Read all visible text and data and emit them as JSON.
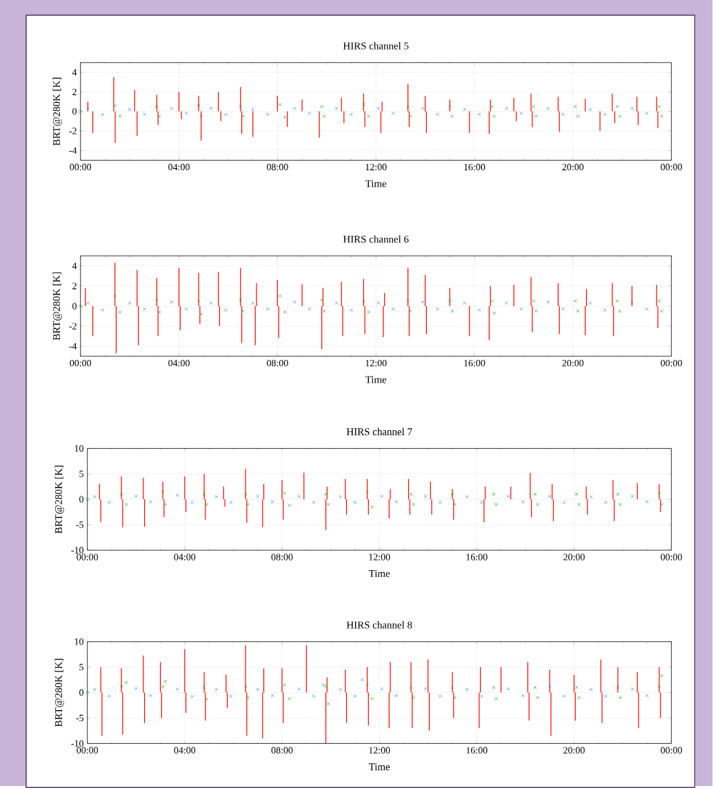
{
  "chart_data": [
    {
      "type": "scatter",
      "title": "HIRS channel 5",
      "xlabel": "Time",
      "ylabel": "BRT@280K [K]",
      "xlim": [
        0,
        24
      ],
      "xticks": [
        {
          "value": 0,
          "label": "00:00"
        },
        {
          "value": 4,
          "label": "04:00"
        },
        {
          "value": 8,
          "label": "08:00"
        },
        {
          "value": 12,
          "label": "12:00"
        },
        {
          "value": 16,
          "label": "16:00"
        },
        {
          "value": 20,
          "label": "20:00"
        },
        {
          "value": 24,
          "label": "00:00"
        }
      ],
      "ylim": [
        -5,
        5
      ],
      "yticks": [
        -4,
        -2,
        0,
        2,
        4
      ],
      "grid": true,
      "series": [
        {
          "type": "bar",
          "color": "#ff0000",
          "x": [
            0,
            0.3,
            0.5,
            1.35,
            1.41,
            2.2,
            2.3,
            3.1,
            3.15,
            4.0,
            4.1,
            4.8,
            4.9,
            5.6,
            5.7,
            6.5,
            6.55,
            7.0,
            8.0,
            8.4,
            9.0,
            9.7,
            10.6,
            10.7,
            11.5,
            11.55,
            12.2,
            12.25,
            13.3,
            13.35,
            14.0,
            14.05,
            15.0,
            15.8,
            16.6,
            16.65,
            17.6,
            17.7,
            18.3,
            18.35,
            19.4,
            19.45,
            20.5,
            21.1,
            21.6,
            21.7,
            22.6,
            22.65,
            23.4,
            23.45,
            24
          ],
          "values": [
            0,
            1.0,
            -2.2,
            3.5,
            -3.2,
            2.2,
            -2.5,
            1.7,
            -1.4,
            2.0,
            -0.8,
            1.6,
            -3.0,
            2.0,
            -1.0,
            2.5,
            -2.3,
            -2.6,
            1.6,
            -1.6,
            1.2,
            -2.7,
            1.4,
            -1.2,
            1.8,
            -1.6,
            -2.2,
            1.0,
            2.8,
            -1.6,
            1.6,
            -2.2,
            1.2,
            -2.2,
            -2.3,
            1.2,
            1.4,
            -1.0,
            1.8,
            -1.6,
            1.5,
            -2.1,
            1.3,
            -2.0,
            1.8,
            -1.2,
            1.5,
            -1.4,
            1.5,
            -1.7,
            0
          ]
        },
        {
          "marker": "cross",
          "color": "#1e8cff",
          "x": [
            0.3,
            0.9,
            2.0,
            2.6,
            3.7,
            4.3,
            5.3,
            5.9,
            7.0,
            7.6,
            8.7,
            9.3,
            10.4,
            11.0,
            12.1,
            12.7,
            13.9,
            14.5,
            15.6,
            16.2,
            17.3,
            17.9,
            19.0,
            19.6,
            20.7,
            21.3,
            22.4,
            23.0
          ],
          "values": [
            0.3,
            -0.3,
            0.2,
            -0.3,
            0.3,
            -0.2,
            0.3,
            -0.3,
            0.2,
            -0.3,
            0.3,
            -0.2,
            0.3,
            -0.3,
            0.3,
            -0.2,
            0.3,
            -0.3,
            0.2,
            -0.3,
            0.3,
            -0.2,
            0.3,
            -0.3,
            0.2,
            -0.3,
            0.3,
            -0.2
          ]
        },
        {
          "marker": "cross",
          "color": "#00b400",
          "x": [
            0,
            1.4,
            1.6,
            3.1,
            3.2,
            4.8,
            4.9,
            6.5,
            6.6,
            8.1,
            8.3,
            9.8,
            9.9,
            11.5,
            11.7,
            13.3,
            13.4,
            15.0,
            15.1,
            16.7,
            16.8,
            18.4,
            18.5,
            20.1,
            20.2,
            21.8,
            21.9,
            23.5,
            23.6
          ],
          "values": [
            0,
            0.6,
            -0.5,
            0.5,
            -0.5,
            0.6,
            -0.5,
            0.5,
            -0.5,
            0.7,
            -0.6,
            0.5,
            -0.5,
            0.7,
            -0.5,
            0.5,
            -0.5,
            0.5,
            -0.5,
            0.5,
            -0.5,
            0.5,
            -0.5,
            0.5,
            -0.5,
            0.5,
            -0.5,
            0.5,
            -0.5
          ]
        }
      ]
    },
    {
      "type": "scatter",
      "title": "HIRS channel 6",
      "xlabel": "Time",
      "ylabel": "BRT@280K [K]",
      "xlim": [
        0,
        24
      ],
      "xticks": [
        {
          "value": 0,
          "label": "00:00"
        },
        {
          "value": 4,
          "label": "04:00"
        },
        {
          "value": 8,
          "label": "08:00"
        },
        {
          "value": 12,
          "label": "12:00"
        },
        {
          "value": 16,
          "label": "16:00"
        },
        {
          "value": 20,
          "label": "20:00"
        },
        {
          "value": 24,
          "label": "00:00"
        }
      ],
      "ylim": [
        -5,
        5
      ],
      "yticks": [
        -4,
        -2,
        0,
        2,
        4
      ],
      "grid": true,
      "series": [
        {
          "type": "bar",
          "color": "#ff0000",
          "x": [
            0,
            0.2,
            0.5,
            1.4,
            1.45,
            2.3,
            2.35,
            3.1,
            3.15,
            4.0,
            4.05,
            4.8,
            4.85,
            5.6,
            5.65,
            6.5,
            6.55,
            7.1,
            7.15,
            8.0,
            8.05,
            9.0,
            9.8,
            9.85,
            10.6,
            10.65,
            11.5,
            11.55,
            12.3,
            12.35,
            13.3,
            13.35,
            14.0,
            14.05,
            15.0,
            15.8,
            16.6,
            16.65,
            17.6,
            18.3,
            18.35,
            19.4,
            19.45,
            20.5,
            20.55,
            21.6,
            21.65,
            22.4,
            23.4,
            23.45,
            24
          ],
          "values": [
            0,
            1.8,
            -3.0,
            4.3,
            -4.7,
            3.6,
            -3.9,
            2.8,
            -3.0,
            3.8,
            -2.4,
            3.3,
            -1.8,
            3.4,
            -2.0,
            3.8,
            -3.7,
            -3.9,
            2.3,
            2.6,
            -3.2,
            2.2,
            -4.3,
            1.8,
            2.4,
            -3.0,
            2.7,
            -2.8,
            -3.1,
            1.3,
            3.8,
            -3.0,
            3.1,
            -2.8,
            1.8,
            -3.0,
            -3.4,
            2.0,
            2.1,
            2.9,
            -2.6,
            2.3,
            -2.8,
            -2.9,
            1.7,
            2.3,
            -3.0,
            2.0,
            2.1,
            -2.2,
            0
          ]
        },
        {
          "marker": "cross",
          "color": "#1e8cff",
          "x": [
            0.3,
            0.9,
            2.0,
            2.6,
            3.7,
            4.3,
            5.3,
            5.9,
            7.0,
            7.6,
            8.7,
            9.3,
            10.4,
            11.0,
            12.1,
            12.7,
            13.9,
            14.5,
            15.6,
            16.2,
            17.3,
            17.9,
            19.0,
            19.6,
            20.7,
            21.3,
            22.4,
            23.0
          ],
          "values": [
            0.3,
            -0.4,
            0.3,
            -0.3,
            0.4,
            -0.3,
            0.3,
            -0.4,
            0.3,
            -0.3,
            0.4,
            -0.3,
            0.3,
            -0.4,
            0.3,
            -0.3,
            0.4,
            -0.3,
            0.3,
            -0.4,
            0.3,
            -0.3,
            0.4,
            -0.3,
            0.3,
            -0.4,
            0.3,
            -0.3
          ]
        },
        {
          "marker": "cross",
          "color": "#00b400",
          "x": [
            0,
            1.4,
            1.6,
            3.1,
            3.2,
            4.8,
            4.9,
            6.5,
            6.6,
            8.1,
            8.3,
            9.8,
            9.9,
            11.5,
            11.7,
            13.3,
            13.4,
            15.0,
            15.1,
            16.7,
            16.8,
            18.4,
            18.5,
            20.1,
            20.2,
            21.8,
            21.9,
            23.5,
            23.6
          ],
          "values": [
            0,
            1.0,
            -0.6,
            0.6,
            -0.6,
            0.5,
            -0.8,
            0.6,
            -0.5,
            1.0,
            -0.6,
            0.6,
            -0.5,
            0.5,
            -0.6,
            0.5,
            -0.5,
            0.5,
            -0.5,
            0.5,
            -0.7,
            0.5,
            -0.5,
            0.5,
            -0.5,
            0.5,
            -0.5,
            0.5,
            -0.5
          ]
        }
      ]
    },
    {
      "type": "scatter",
      "title": "HIRS channel 7",
      "xlabel": "Time",
      "ylabel": "BRT@280K [K]",
      "xlim": [
        0,
        24
      ],
      "xticks": [
        {
          "value": 0,
          "label": "00:00"
        },
        {
          "value": 4,
          "label": "04:00"
        },
        {
          "value": 8,
          "label": "08:00"
        },
        {
          "value": 12,
          "label": "12:00"
        },
        {
          "value": 16,
          "label": "16:00"
        },
        {
          "value": 20,
          "label": "20:00"
        },
        {
          "value": 24,
          "label": "00:00"
        }
      ],
      "ylim": [
        -10,
        10
      ],
      "yticks": [
        -10,
        -5,
        0,
        5,
        10
      ],
      "grid": true,
      "series": [
        {
          "type": "bar",
          "color": "#ff0000",
          "x": [
            0,
            0.5,
            0.55,
            1.4,
            1.45,
            2.3,
            2.35,
            3.1,
            3.15,
            4.0,
            4.05,
            4.8,
            4.85,
            5.6,
            5.65,
            6.5,
            6.55,
            7.2,
            7.25,
            8.0,
            8.05,
            8.9,
            9.8,
            9.85,
            10.6,
            10.65,
            11.5,
            11.55,
            12.4,
            12.45,
            13.2,
            13.25,
            14.1,
            14.15,
            15.0,
            15.05,
            16.3,
            16.35,
            17.4,
            18.2,
            18.25,
            19.1,
            19.15,
            20.5,
            20.55,
            21.6,
            21.65,
            22.6,
            23.5,
            23.55,
            24
          ],
          "values": [
            0,
            3.0,
            -4.5,
            4.5,
            -5.5,
            4.2,
            -5.4,
            3.5,
            -3.5,
            4.5,
            -2.5,
            5.0,
            -4.0,
            2.5,
            -1.5,
            6.0,
            -4.6,
            -5.5,
            3.0,
            3.8,
            -4.0,
            5.2,
            -6.0,
            2.5,
            4.0,
            -3.0,
            4.0,
            -3.0,
            -3.8,
            2.0,
            4.0,
            -3.0,
            3.5,
            -3.0,
            2.0,
            -4.0,
            -4.5,
            2.5,
            2.5,
            5.2,
            -3.5,
            3.0,
            -4.3,
            2.5,
            -3.0,
            3.8,
            -4.3,
            3.2,
            3.0,
            -2.5,
            0
          ]
        },
        {
          "marker": "cross",
          "color": "#1e8cff",
          "x": [
            0.3,
            0.9,
            2.0,
            2.6,
            3.7,
            4.3,
            5.3,
            5.9,
            7.0,
            7.6,
            8.7,
            9.3,
            10.4,
            11.0,
            12.1,
            12.7,
            13.9,
            14.5,
            15.6,
            16.2,
            17.3,
            17.9,
            19.0,
            19.6,
            20.7,
            21.3,
            22.4,
            23.0
          ],
          "values": [
            0.5,
            -0.6,
            0.6,
            -0.5,
            0.8,
            -0.6,
            0.5,
            -0.6,
            0.6,
            -0.5,
            0.6,
            -0.6,
            0.5,
            -0.6,
            0.6,
            -0.5,
            0.6,
            -0.6,
            0.5,
            -0.6,
            0.6,
            -0.5,
            0.6,
            -0.6,
            0.5,
            -0.6,
            0.6,
            -0.5
          ]
        },
        {
          "marker": "cross",
          "color": "#00b400",
          "x": [
            0,
            1.4,
            1.6,
            3.1,
            3.2,
            4.8,
            4.9,
            6.5,
            6.6,
            8.1,
            8.3,
            9.8,
            9.9,
            11.5,
            11.7,
            13.3,
            13.4,
            15.0,
            15.1,
            16.7,
            16.8,
            18.4,
            18.5,
            20.1,
            20.2,
            21.8,
            21.9,
            23.5,
            23.6
          ],
          "values": [
            0,
            1.0,
            -1.0,
            1.5,
            -1.0,
            1.0,
            -1.0,
            1.0,
            -1.0,
            1.2,
            -1.2,
            1.0,
            -1.0,
            1.5,
            -1.5,
            1.0,
            -1.0,
            1.0,
            -1.0,
            1.0,
            -1.0,
            1.0,
            -1.0,
            1.0,
            -1.0,
            1.0,
            -1.0,
            1.2,
            -1.0
          ]
        }
      ]
    },
    {
      "type": "scatter",
      "title": "HIRS channel 8",
      "xlabel": "Time",
      "ylabel": "BRT@280K [K]",
      "xlim": [
        0,
        24
      ],
      "xticks": [
        {
          "value": 0,
          "label": "00:00"
        },
        {
          "value": 4,
          "label": "04:00"
        },
        {
          "value": 8,
          "label": "08:00"
        },
        {
          "value": 12,
          "label": "12:00"
        },
        {
          "value": 16,
          "label": "16:00"
        },
        {
          "value": 20,
          "label": "20:00"
        },
        {
          "value": 24,
          "label": "00:00"
        }
      ],
      "ylim": [
        -10,
        10
      ],
      "yticks": [
        -10,
        -5,
        0,
        5,
        10
      ],
      "grid": true,
      "series": [
        {
          "type": "bar",
          "color": "#ff0000",
          "x": [
            0,
            0.55,
            0.6,
            1.4,
            1.45,
            2.3,
            2.35,
            3.0,
            3.05,
            4.0,
            4.05,
            4.8,
            4.85,
            5.7,
            5.75,
            6.5,
            6.55,
            7.2,
            7.25,
            8.0,
            8.05,
            9.0,
            9.8,
            9.85,
            10.6,
            10.65,
            11.5,
            11.55,
            12.4,
            12.45,
            13.3,
            13.35,
            14.0,
            14.05,
            15.0,
            15.05,
            16.1,
            16.15,
            17.0,
            18.1,
            18.15,
            19.0,
            19.05,
            20.0,
            20.05,
            21.1,
            21.15,
            21.8,
            22.6,
            22.65,
            23.5,
            23.55,
            24
          ],
          "values": [
            0,
            5.0,
            -8.5,
            4.8,
            -8.3,
            7.3,
            -6.0,
            6.0,
            -5.0,
            8.5,
            -4.0,
            4.0,
            -5.5,
            3.5,
            -3.0,
            9.3,
            -8.5,
            -9.0,
            4.8,
            4.8,
            -6.0,
            9.3,
            -10.0,
            3.0,
            4.5,
            -6.0,
            5.0,
            -6.5,
            -7.0,
            6.0,
            6.0,
            -7.0,
            6.5,
            -7.5,
            4.0,
            -5.0,
            -7.0,
            5.0,
            5.0,
            6.0,
            -5.5,
            4.5,
            -8.5,
            3.5,
            -5.5,
            6.5,
            -6.0,
            5.0,
            4.0,
            -7.0,
            5.0,
            -5.0,
            0
          ]
        },
        {
          "marker": "cross",
          "color": "#1e8cff",
          "x": [
            0.3,
            0.9,
            2.0,
            2.6,
            3.7,
            4.3,
            5.3,
            5.9,
            7.0,
            7.6,
            8.7,
            9.3,
            9.7,
            10.4,
            11.0,
            11.3,
            12.1,
            12.7,
            13.9,
            14.5,
            15.6,
            16.2,
            17.3,
            17.9,
            19.0,
            19.6,
            20.7,
            21.3,
            22.4,
            23.0
          ],
          "values": [
            0.6,
            -0.7,
            0.8,
            -0.6,
            0.7,
            -0.8,
            0.6,
            -0.7,
            0.6,
            -0.6,
            0.7,
            -0.7,
            1.5,
            0.6,
            -0.7,
            2.5,
            0.7,
            -0.6,
            0.8,
            -0.7,
            0.6,
            -0.7,
            0.7,
            -0.6,
            1.2,
            -0.7,
            0.6,
            -0.7,
            0.7,
            -0.6
          ]
        },
        {
          "marker": "cross",
          "color": "#00b400",
          "x": [
            0,
            1.4,
            1.6,
            3.1,
            3.2,
            4.8,
            4.9,
            6.5,
            6.6,
            8.1,
            8.3,
            9.8,
            9.9,
            11.5,
            11.7,
            13.3,
            13.4,
            15.0,
            15.1,
            16.7,
            16.8,
            18.4,
            18.5,
            20.1,
            20.2,
            21.8,
            21.9,
            23.5,
            23.6
          ],
          "values": [
            0,
            1.2,
            2.0,
            1.2,
            2.2,
            1.0,
            -1.3,
            1.2,
            -1.0,
            1.5,
            -1.2,
            1.2,
            -2.2,
            1.5,
            -1.2,
            1.0,
            -1.0,
            1.0,
            -1.0,
            1.0,
            -1.2,
            1.0,
            -1.0,
            1.0,
            -1.0,
            1.0,
            -1.0,
            1.2,
            3.3
          ]
        }
      ]
    }
  ]
}
